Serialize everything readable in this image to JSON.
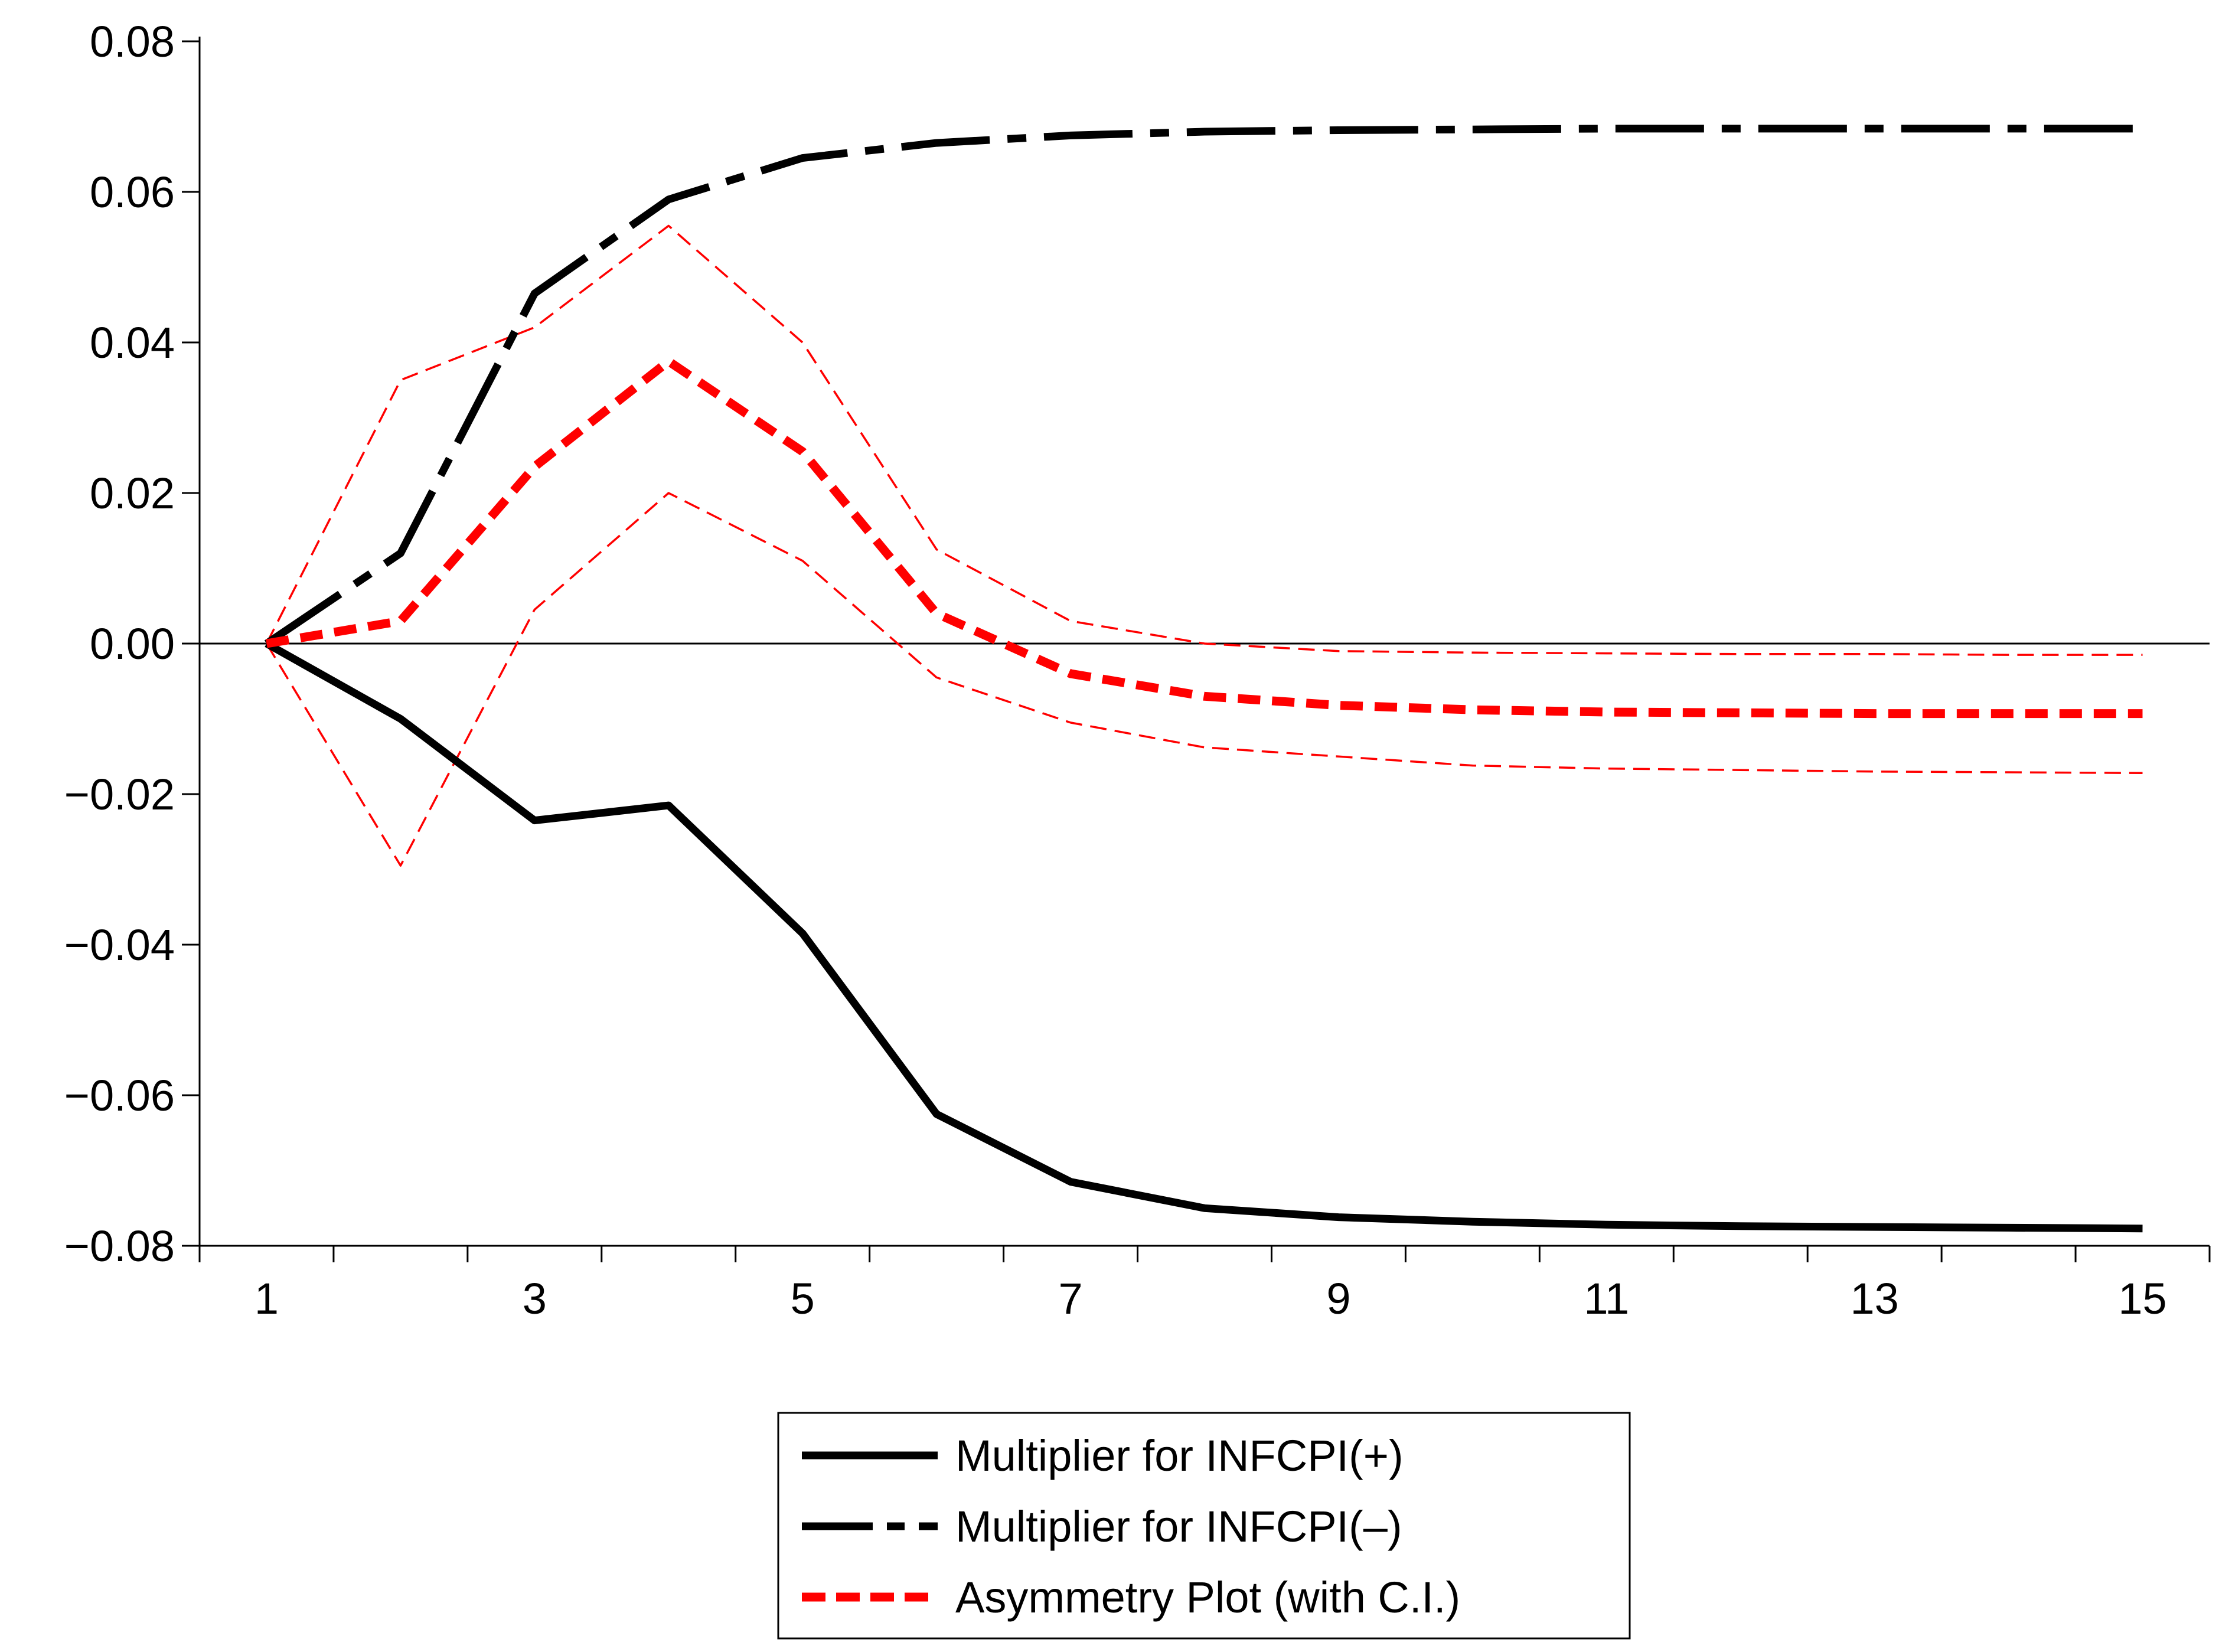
{
  "chart_data": {
    "type": "line",
    "title": "",
    "xlabel": "",
    "ylabel": "",
    "x": [
      1,
      2,
      3,
      4,
      5,
      6,
      7,
      8,
      9,
      10,
      11,
      12,
      13,
      14,
      15
    ],
    "xlim": [
      0.5,
      15.5
    ],
    "ylim": [
      -0.08,
      0.08
    ],
    "x_tick_values": [
      1,
      3,
      5,
      7,
      9,
      11,
      13,
      15
    ],
    "x_tick_labels": [
      "1",
      "3",
      "5",
      "7",
      "9",
      "11",
      "13",
      "15"
    ],
    "y_tick_values": [
      0.08,
      0.06,
      0.04,
      0.02,
      0.0,
      -0.02,
      -0.04,
      -0.06,
      -0.08
    ],
    "y_tick_labels": [
      "0.08",
      "0.06",
      "0.04",
      "0.02",
      "0.00",
      "−0.02",
      "−0.04",
      "−0.06",
      "−0.08"
    ],
    "zero_line": true,
    "grid": false,
    "legend_position": "bottom-center",
    "series": [
      {
        "name": "Multiplier for INFCPI(+)",
        "style": "solid",
        "color": "#000000",
        "in_legend": true,
        "values": [
          0.0,
          -0.01,
          -0.0235,
          -0.0215,
          -0.0385,
          -0.0625,
          -0.0715,
          -0.075,
          -0.0762,
          -0.0768,
          -0.0772,
          -0.0774,
          -0.0775,
          -0.0776,
          -0.0777
        ]
      },
      {
        "name": "Multiplier for INFCPI(–)",
        "style": "long-dash",
        "color": "#000000",
        "in_legend": true,
        "values": [
          0.0,
          0.012,
          0.0465,
          0.059,
          0.0645,
          0.0665,
          0.0675,
          0.068,
          0.0682,
          0.0683,
          0.0684,
          0.0684,
          0.0684,
          0.0684,
          0.0684
        ]
      },
      {
        "name": "Asymmetry Plot (with C.I.)",
        "style": "dash",
        "color": "#ff0000",
        "in_legend": true,
        "values": [
          0.0,
          0.003,
          0.0235,
          0.0375,
          0.0255,
          0.004,
          -0.004,
          -0.007,
          -0.0082,
          -0.0088,
          -0.0091,
          -0.0092,
          -0.0093,
          -0.0093,
          -0.0093
        ]
      },
      {
        "name": "Asymmetry upper bound",
        "style": "thin-dash",
        "color": "#ff0000",
        "in_legend": false,
        "values": [
          0.0,
          0.035,
          0.042,
          0.0555,
          0.04,
          0.0125,
          0.003,
          0.0,
          -0.001,
          -0.0012,
          -0.0013,
          -0.0014,
          -0.0014,
          -0.0015,
          -0.0015
        ]
      },
      {
        "name": "Asymmetry lower bound",
        "style": "thin-dash",
        "color": "#ff0000",
        "in_legend": false,
        "values": [
          0.0,
          -0.0295,
          0.0045,
          0.02,
          0.011,
          -0.0045,
          -0.0105,
          -0.0138,
          -0.015,
          -0.0162,
          -0.0166,
          -0.0168,
          -0.017,
          -0.0171,
          -0.0172
        ]
      }
    ]
  }
}
